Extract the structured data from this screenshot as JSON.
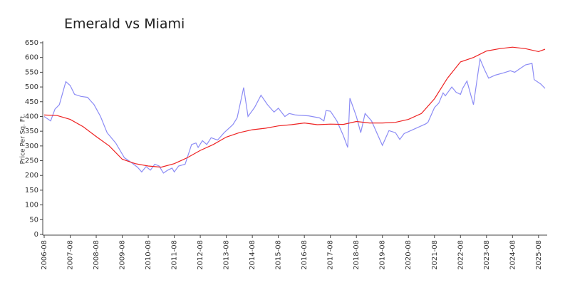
{
  "chart_data": {
    "type": "line",
    "title": "Emerald vs Miami",
    "y_label": "Price Per Sq. Ft.",
    "xlim": [
      "2006-08",
      "2025-12"
    ],
    "xticks": [
      "2006-08",
      "2007-08",
      "2008-08",
      "2009-08",
      "2010-08",
      "2011-08",
      "2012-08",
      "2013-08",
      "2014-08",
      "2015-08",
      "2016-08",
      "2017-08",
      "2018-08",
      "2019-08",
      "2020-08",
      "2021-08",
      "2022-08",
      "2023-08",
      "2024-08",
      "2025-08"
    ],
    "ylim": [
      0,
      650
    ],
    "yticks": [
      0,
      50,
      100,
      150,
      200,
      250,
      300,
      350,
      400,
      450,
      500,
      550,
      600,
      650
    ],
    "series": [
      {
        "color": "#8c8cf5",
        "x": [
          "2006-08",
          "2006-11",
          "2007-01",
          "2007-03",
          "2007-06",
          "2007-08",
          "2007-10",
          "2008-01",
          "2008-04",
          "2008-07",
          "2008-10",
          "2009-01",
          "2009-05",
          "2009-09",
          "2009-12",
          "2010-03",
          "2010-05",
          "2010-07",
          "2010-09",
          "2010-11",
          "2011-01",
          "2011-03",
          "2011-05",
          "2011-07",
          "2011-08",
          "2011-10",
          "2012-01",
          "2012-04",
          "2012-06",
          "2012-07",
          "2012-09",
          "2012-11",
          "2013-01",
          "2013-04",
          "2013-07",
          "2013-11",
          "2014-01",
          "2014-04",
          "2014-06",
          "2014-09",
          "2014-12",
          "2015-03",
          "2015-06",
          "2015-08",
          "2015-11",
          "2016-01",
          "2016-04",
          "2016-10",
          "2017-03",
          "2017-05",
          "2017-06",
          "2017-08",
          "2017-11",
          "2018-02",
          "2018-04",
          "2018-05",
          "2018-08",
          "2018-10",
          "2018-12",
          "2019-03",
          "2019-06",
          "2019-08",
          "2019-11",
          "2020-02",
          "2020-04",
          "2020-06",
          "2020-10",
          "2021-01",
          "2021-04",
          "2021-05",
          "2021-08",
          "2021-10",
          "2021-12",
          "2022-01",
          "2022-04",
          "2022-06",
          "2022-08",
          "2022-09",
          "2022-11",
          "2023-02",
          "2023-05",
          "2023-07",
          "2023-09",
          "2023-12",
          "2024-04",
          "2024-07",
          "2024-09",
          "2024-11",
          "2025-02",
          "2025-05",
          "2025-06",
          "2025-09",
          "2025-11"
        ],
        "values": [
          400,
          385,
          425,
          440,
          518,
          505,
          475,
          468,
          465,
          440,
          400,
          345,
          310,
          260,
          245,
          228,
          212,
          230,
          218,
          238,
          232,
          208,
          218,
          225,
          212,
          232,
          238,
          305,
          310,
          295,
          318,
          305,
          328,
          320,
          345,
          372,
          395,
          498,
          400,
          430,
          472,
          440,
          415,
          428,
          400,
          410,
          405,
          402,
          395,
          385,
          420,
          418,
          385,
          335,
          295,
          462,
          400,
          345,
          410,
          385,
          335,
          302,
          352,
          345,
          322,
          342,
          355,
          365,
          375,
          380,
          430,
          445,
          480,
          470,
          500,
          482,
          475,
          495,
          520,
          440,
          595,
          560,
          530,
          540,
          548,
          555,
          550,
          560,
          575,
          580,
          525,
          510,
          495
        ]
      },
      {
        "color": "#ee2222",
        "x": [
          "2006-08",
          "2007-02",
          "2007-08",
          "2008-02",
          "2008-08",
          "2009-02",
          "2009-08",
          "2010-02",
          "2010-08",
          "2011-02",
          "2011-08",
          "2012-02",
          "2012-08",
          "2013-02",
          "2013-08",
          "2014-02",
          "2014-08",
          "2015-02",
          "2015-08",
          "2016-02",
          "2016-08",
          "2017-02",
          "2017-08",
          "2018-02",
          "2018-08",
          "2019-02",
          "2019-08",
          "2020-02",
          "2020-08",
          "2021-02",
          "2021-08",
          "2022-02",
          "2022-08",
          "2023-02",
          "2023-08",
          "2024-02",
          "2024-08",
          "2025-02",
          "2025-08",
          "2025-11"
        ],
        "values": [
          405,
          403,
          390,
          365,
          332,
          300,
          255,
          240,
          232,
          228,
          240,
          260,
          285,
          305,
          330,
          345,
          355,
          360,
          368,
          372,
          378,
          372,
          374,
          373,
          383,
          378,
          378,
          380,
          390,
          410,
          460,
          530,
          585,
          600,
          622,
          630,
          635,
          630,
          620,
          628
        ]
      }
    ]
  }
}
